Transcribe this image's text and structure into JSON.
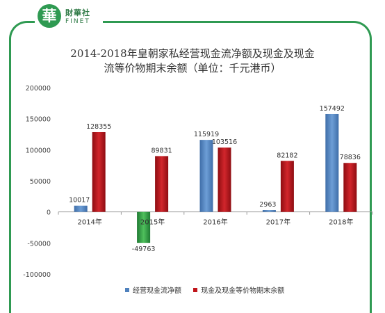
{
  "logo": {
    "glyph": "華",
    "cn": "財華社",
    "en": "FINET"
  },
  "title_line1": "2014-2018年皇朝家私经营现金流净额及现金及现金",
  "title_line2": "流等价物期末余额（单位：千元港币）",
  "chart_data": {
    "type": "bar",
    "title": "2014-2018年皇朝家私经营现金流净额及现金及现金流等价物期末余额（单位：千元港币）",
    "categories": [
      "2014年",
      "2015年",
      "2016年",
      "2017年",
      "2018年"
    ],
    "series": [
      {
        "name": "经营现金流净额",
        "values": [
          10017,
          -49763,
          115919,
          2963,
          157492
        ],
        "color": "#4f81bd",
        "negative_color": "#3daa4a"
      },
      {
        "name": "现金及现金等价物期末余额",
        "values": [
          128355,
          89831,
          103516,
          82182,
          78836
        ],
        "color": "#c0141a"
      }
    ],
    "ylim": [
      -100000,
      200000
    ],
    "yticks": [
      -100000,
      -50000,
      0,
      50000,
      100000,
      150000,
      200000
    ],
    "ytick_labels": [
      "-100000",
      "-50000",
      "0",
      "50000",
      "100000",
      "150000",
      "200000"
    ],
    "grid": false,
    "legend": "bottom"
  }
}
